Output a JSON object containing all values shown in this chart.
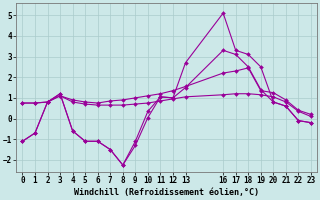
{
  "xlabel": "Windchill (Refroidissement éolien,°C)",
  "bg_color": "#cce8e8",
  "grid_color": "#aacccc",
  "line_color": "#990099",
  "xlim": [
    -0.5,
    23.5
  ],
  "ylim": [
    -2.6,
    5.6
  ],
  "yticks": [
    -2,
    -1,
    0,
    1,
    2,
    3,
    4,
    5
  ],
  "xticks": [
    0,
    1,
    2,
    3,
    4,
    5,
    6,
    7,
    8,
    9,
    10,
    11,
    12,
    13,
    16,
    17,
    18,
    19,
    20,
    21,
    22,
    23
  ],
  "xtick_labels": [
    "0",
    "1",
    "2",
    "3",
    "4",
    "5",
    "6",
    "7",
    "8",
    "9",
    "10",
    "11",
    "12",
    "13",
    "16",
    "17",
    "18",
    "19",
    "20",
    "21",
    "22",
    "23"
  ],
  "series1_x": [
    0,
    1,
    2,
    3,
    4,
    5,
    6,
    7,
    8,
    9,
    10,
    11,
    12,
    13,
    16,
    17,
    18,
    19,
    20,
    21,
    22,
    23
  ],
  "series1_y": [
    -1.1,
    -0.7,
    0.8,
    1.2,
    -0.6,
    -1.1,
    -1.1,
    -1.5,
    -2.25,
    -1.1,
    0.35,
    1.05,
    1.0,
    2.7,
    5.1,
    3.3,
    3.1,
    2.5,
    0.8,
    0.6,
    -0.1,
    -0.2
  ],
  "series2_x": [
    0,
    1,
    2,
    3,
    4,
    5,
    6,
    7,
    8,
    9,
    10,
    11,
    12,
    13,
    16,
    17,
    18,
    19,
    20,
    21,
    22,
    23
  ],
  "series2_y": [
    -1.1,
    -0.7,
    0.8,
    1.2,
    -0.6,
    -1.1,
    -1.1,
    -1.5,
    -2.25,
    -1.3,
    0.05,
    1.05,
    1.0,
    1.5,
    3.3,
    3.1,
    2.5,
    1.4,
    0.8,
    0.6,
    -0.1,
    -0.2
  ],
  "series3_x": [
    0,
    1,
    2,
    3,
    4,
    5,
    6,
    7,
    8,
    9,
    10,
    11,
    12,
    13,
    16,
    17,
    18,
    19,
    20,
    21,
    22,
    23
  ],
  "series3_y": [
    0.75,
    0.75,
    0.8,
    1.1,
    0.9,
    0.8,
    0.75,
    0.85,
    0.9,
    1.0,
    1.1,
    1.2,
    1.35,
    1.55,
    2.2,
    2.3,
    2.45,
    1.35,
    1.25,
    0.9,
    0.4,
    0.2
  ],
  "series4_x": [
    0,
    1,
    2,
    3,
    4,
    5,
    6,
    7,
    8,
    9,
    10,
    11,
    12,
    13,
    16,
    17,
    18,
    19,
    20,
    21,
    22,
    23
  ],
  "series4_y": [
    0.75,
    0.75,
    0.8,
    1.1,
    0.8,
    0.7,
    0.65,
    0.65,
    0.65,
    0.7,
    0.75,
    0.85,
    0.95,
    1.05,
    1.15,
    1.2,
    1.2,
    1.15,
    1.05,
    0.8,
    0.35,
    0.1
  ],
  "marker": "D",
  "marker_size": 2.0,
  "line_width": 0.8,
  "font_size_xlabel": 6.0,
  "font_size_ticks": 5.5
}
